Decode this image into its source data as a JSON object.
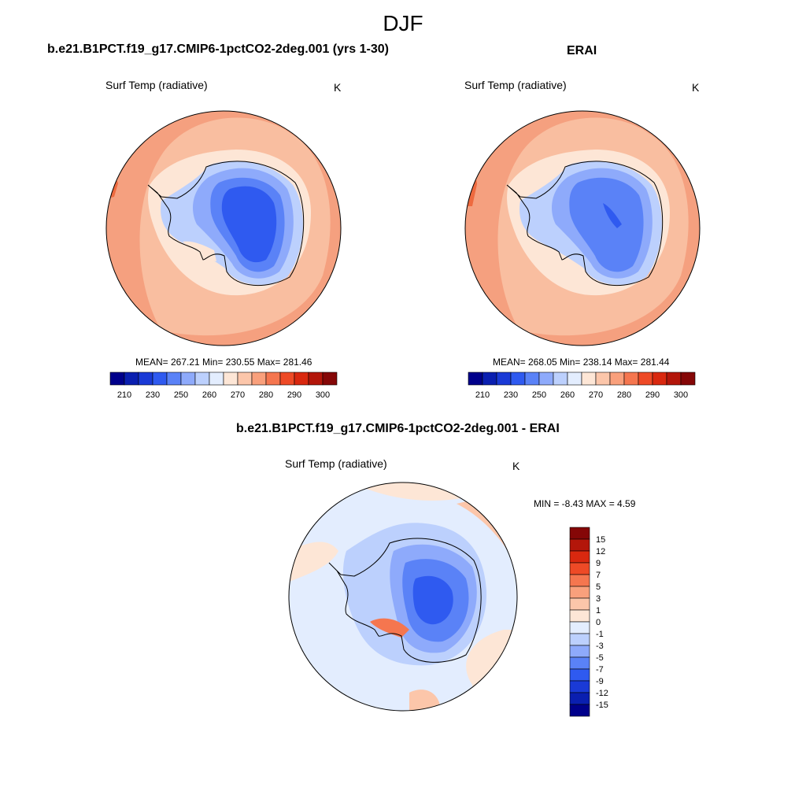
{
  "season": "DJF",
  "panels": [
    {
      "id": "model",
      "title": "b.e21.B1PCT.f19_g17.CMIP6-1pctCO2-2deg.001 (yrs 1-30)",
      "variable": "Surf Temp (radiative)",
      "units": "K",
      "stats": "MEAN= 267.21  Min= 230.55  Max= 281.46"
    },
    {
      "id": "obs",
      "title": "ERAI",
      "variable": "Surf Temp (radiative)",
      "units": "K",
      "stats": "MEAN= 268.05  Min= 238.14  Max= 281.44"
    },
    {
      "id": "diff",
      "title": "b.e21.B1PCT.f19_g17.CMIP6-1pctCO2-2deg.001 - ERAI",
      "variable": "Surf Temp (radiative)",
      "units": "K",
      "stats": "MIN =  -8.43 MAX =   4.59"
    }
  ],
  "colorbars": {
    "absolute": {
      "labels": [
        "210",
        "230",
        "250",
        "260",
        "270",
        "280",
        "290",
        "300"
      ],
      "colors": [
        "#00008b",
        "#0a1fb0",
        "#1a3ad6",
        "#2f5af0",
        "#5a82f7",
        "#8eaafb",
        "#bcd0fd",
        "#e3edfe",
        "#fde6d6",
        "#fcc6aa",
        "#f9a07c",
        "#f5764f",
        "#ee4a26",
        "#d9280f",
        "#b3160a",
        "#850707"
      ]
    },
    "difference": {
      "labels": [
        "15",
        "12",
        "9",
        "7",
        "5",
        "3",
        "1",
        "0",
        "-1",
        "-3",
        "-5",
        "-7",
        "-9",
        "-12",
        "-15"
      ],
      "colors": [
        "#850707",
        "#b3160a",
        "#d9280f",
        "#ee4a26",
        "#f5764f",
        "#f9a07c",
        "#fcc6aa",
        "#fde6d6",
        "#e3edfe",
        "#bcd0fd",
        "#8eaafb",
        "#5a82f7",
        "#2f5af0",
        "#1a3ad6",
        "#0a1fb0",
        "#00008b"
      ]
    }
  }
}
